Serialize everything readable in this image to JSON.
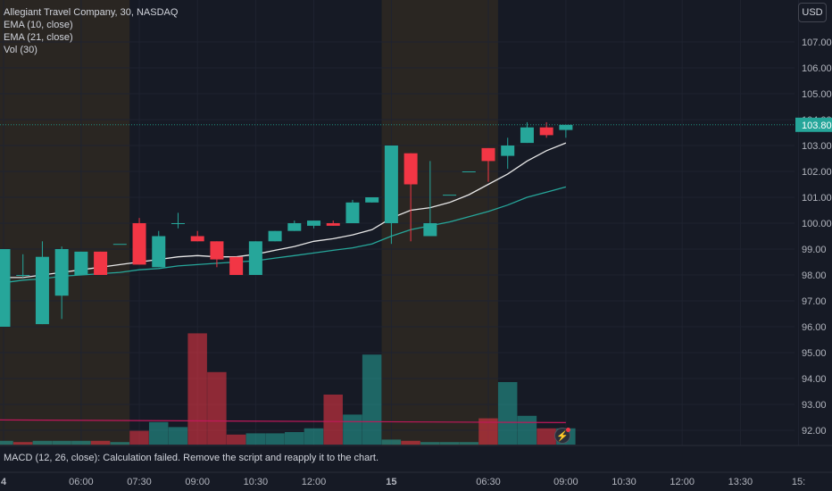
{
  "legend": {
    "symbol": "Allegiant Travel Company, 30, NASDAQ",
    "ema10": "EMA (10, close)",
    "ema21": "EMA (21, close)",
    "vol": "Vol (30)"
  },
  "currency_button": "USD",
  "macd_message": "MACD (12, 26, close): Calculation failed. Remove the script and reapply it to the chart.",
  "colors": {
    "background": "#161a25",
    "up": "#26a69a",
    "down": "#f23645",
    "ema10": "#e8e8e8",
    "ema21": "#26a69a",
    "session_shade": "#2a2622",
    "price_line": "#1f8f7f",
    "macd_line": "#c2185b"
  },
  "chart_data": {
    "type": "candlestick",
    "title": "Allegiant Travel Company, 30, NASDAQ",
    "current_price": "103.80",
    "ylim": [
      91.7,
      108.0
    ],
    "y_ticks": [
      "107.00",
      "106.00",
      "105.00",
      "104.00",
      "103.00",
      "102.00",
      "101.00",
      "100.00",
      "99.00",
      "98.00",
      "97.00",
      "96.00",
      "95.00",
      "94.00",
      "93.00",
      "92.00"
    ],
    "x_ticks": [
      {
        "label": "4",
        "bar": 0,
        "bold": true
      },
      {
        "label": "06:00",
        "bar": 4
      },
      {
        "label": "07:30",
        "bar": 7
      },
      {
        "label": "09:00",
        "bar": 10
      },
      {
        "label": "10:30",
        "bar": 13
      },
      {
        "label": "12:00",
        "bar": 16
      },
      {
        "label": "15",
        "bar": 20,
        "bold": true
      },
      {
        "label": "06:30",
        "bar": 25
      },
      {
        "label": "09:00",
        "bar": 29
      },
      {
        "label": "10:30",
        "bar": 32
      },
      {
        "label": "12:00",
        "bar": 35
      },
      {
        "label": "13:30",
        "bar": 38
      },
      {
        "label": "15:",
        "bar": 41
      }
    ],
    "sessions": [
      [
        -0.5,
        6.5
      ],
      [
        19.5,
        25.5
      ]
    ],
    "candles": [
      {
        "o": 96.0,
        "h": 99.0,
        "l": 96.0,
        "c": 99.0
      },
      {
        "o": 98.0,
        "h": 98.8,
        "l": 97.9,
        "c": 98.0
      },
      {
        "o": 96.1,
        "h": 99.3,
        "l": 96.1,
        "c": 98.7
      },
      {
        "o": 97.2,
        "h": 99.1,
        "l": 96.3,
        "c": 99.0
      },
      {
        "o": 98.0,
        "h": 98.9,
        "l": 98.0,
        "c": 98.9
      },
      {
        "o": 98.9,
        "h": 98.9,
        "l": 98.0,
        "c": 98.0
      },
      {
        "o": 99.2,
        "h": 99.2,
        "l": 99.2,
        "c": 99.2
      },
      {
        "o": 100.0,
        "h": 100.2,
        "l": 98.4,
        "c": 98.4
      },
      {
        "o": 98.3,
        "h": 99.7,
        "l": 98.3,
        "c": 99.5
      },
      {
        "o": 100.0,
        "h": 100.4,
        "l": 99.8,
        "c": 100.0
      },
      {
        "o": 99.5,
        "h": 99.7,
        "l": 99.3,
        "c": 99.3
      },
      {
        "o": 99.3,
        "h": 99.3,
        "l": 98.3,
        "c": 98.6
      },
      {
        "o": 98.7,
        "h": 98.7,
        "l": 98.0,
        "c": 98.0
      },
      {
        "o": 98.0,
        "h": 99.3,
        "l": 98.0,
        "c": 99.3
      },
      {
        "o": 99.3,
        "h": 99.7,
        "l": 99.3,
        "c": 99.7
      },
      {
        "o": 99.7,
        "h": 100.1,
        "l": 99.7,
        "c": 100.0
      },
      {
        "o": 99.9,
        "h": 100.1,
        "l": 99.8,
        "c": 100.1
      },
      {
        "o": 100.0,
        "h": 100.1,
        "l": 99.9,
        "c": 99.9
      },
      {
        "o": 100.0,
        "h": 100.9,
        "l": 100.0,
        "c": 100.8
      },
      {
        "o": 100.8,
        "h": 101.0,
        "l": 100.8,
        "c": 101.0
      },
      {
        "o": 100.0,
        "h": 103.0,
        "l": 99.2,
        "c": 103.0
      },
      {
        "o": 102.7,
        "h": 102.7,
        "l": 99.3,
        "c": 101.5
      },
      {
        "o": 99.5,
        "h": 102.4,
        "l": 99.5,
        "c": 100.0
      },
      {
        "o": 101.1,
        "h": 101.1,
        "l": 101.1,
        "c": 101.1
      },
      {
        "o": 102.0,
        "h": 102.0,
        "l": 102.0,
        "c": 102.0
      },
      {
        "o": 102.9,
        "h": 102.9,
        "l": 101.6,
        "c": 102.4
      },
      {
        "o": 102.6,
        "h": 103.3,
        "l": 102.1,
        "c": 103.0
      },
      {
        "o": 103.1,
        "h": 103.9,
        "l": 103.1,
        "c": 103.7
      },
      {
        "o": 103.7,
        "h": 103.9,
        "l": 103.3,
        "c": 103.4
      },
      {
        "o": 103.6,
        "h": 103.8,
        "l": 103.3,
        "c": 103.8
      }
    ],
    "ema10": [
      97.9,
      97.9,
      98.0,
      98.1,
      98.2,
      98.3,
      98.4,
      98.5,
      98.6,
      98.7,
      98.75,
      98.7,
      98.7,
      98.8,
      98.95,
      99.1,
      99.3,
      99.4,
      99.55,
      99.75,
      100.2,
      100.5,
      100.6,
      100.8,
      101.1,
      101.5,
      101.9,
      102.4,
      102.8,
      103.1
    ],
    "ema21": [
      97.7,
      97.8,
      97.85,
      97.95,
      98.0,
      98.05,
      98.1,
      98.2,
      98.25,
      98.35,
      98.4,
      98.45,
      98.5,
      98.55,
      98.65,
      98.75,
      98.85,
      98.95,
      99.05,
      99.2,
      99.5,
      99.75,
      99.9,
      100.05,
      100.25,
      100.45,
      100.7,
      101.0,
      101.2,
      101.4
    ],
    "volume": [
      {
        "v": 0.03,
        "dir": "up"
      },
      {
        "v": 0.02,
        "dir": "down"
      },
      {
        "v": 0.03,
        "dir": "up"
      },
      {
        "v": 0.03,
        "dir": "up"
      },
      {
        "v": 0.03,
        "dir": "up"
      },
      {
        "v": 0.03,
        "dir": "down"
      },
      {
        "v": 0.02,
        "dir": "up"
      },
      {
        "v": 0.11,
        "dir": "down"
      },
      {
        "v": 0.18,
        "dir": "up"
      },
      {
        "v": 0.14,
        "dir": "up"
      },
      {
        "v": 0.89,
        "dir": "down"
      },
      {
        "v": 0.58,
        "dir": "down"
      },
      {
        "v": 0.08,
        "dir": "down"
      },
      {
        "v": 0.09,
        "dir": "up"
      },
      {
        "v": 0.09,
        "dir": "up"
      },
      {
        "v": 0.1,
        "dir": "up"
      },
      {
        "v": 0.13,
        "dir": "up"
      },
      {
        "v": 0.4,
        "dir": "down"
      },
      {
        "v": 0.24,
        "dir": "up"
      },
      {
        "v": 0.72,
        "dir": "up"
      },
      {
        "v": 0.04,
        "dir": "up"
      },
      {
        "v": 0.03,
        "dir": "down"
      },
      {
        "v": 0.02,
        "dir": "up"
      },
      {
        "v": 0.02,
        "dir": "up"
      },
      {
        "v": 0.02,
        "dir": "up"
      },
      {
        "v": 0.21,
        "dir": "down"
      },
      {
        "v": 0.5,
        "dir": "up"
      },
      {
        "v": 0.23,
        "dir": "up"
      },
      {
        "v": 0.13,
        "dir": "down"
      },
      {
        "v": 0.13,
        "dir": "up"
      }
    ],
    "volume_ma_level": 0.19
  }
}
